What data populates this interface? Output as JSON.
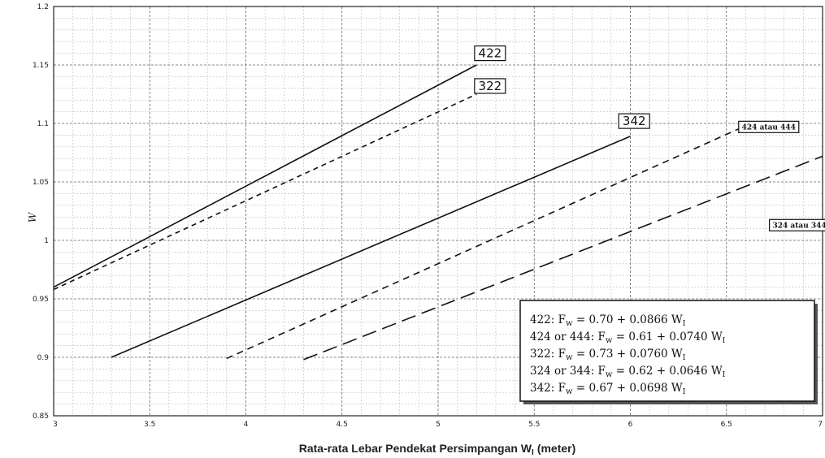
{
  "chart_data": {
    "type": "line",
    "title": "",
    "xlabel": "Rata-rata Lebar Pendekat Persimpangan W",
    "xlabel_subscript": "I",
    "xlabel_unit": "(meter)",
    "ylabel": "W",
    "xlim": [
      3,
      7
    ],
    "ylim": [
      0.85,
      1.2
    ],
    "x_ticks": [
      "3",
      "3.5",
      "4",
      "4.5",
      "5",
      "5.5",
      "6",
      "6.5",
      "7"
    ],
    "y_ticks": [
      "0.85",
      "0.9",
      "0.95",
      "1",
      "1.05",
      "1.1",
      "1.15",
      "1.2"
    ],
    "grid": true,
    "series": [
      {
        "name": "422",
        "style": "solid",
        "x": [
          3,
          5.2
        ],
        "y": [
          0.96,
          1.15
        ]
      },
      {
        "name": "322",
        "style": "dotted",
        "x": [
          3,
          5.2
        ],
        "y": [
          0.958,
          1.125
        ]
      },
      {
        "name": "342",
        "style": "solid",
        "x": [
          3.3,
          6
        ],
        "y": [
          0.9,
          1.089
        ]
      },
      {
        "name": "424 atau 444",
        "style": "dashed",
        "x": [
          3.9,
          6.6
        ],
        "y": [
          0.899,
          1.098
        ]
      },
      {
        "name": "324 atau 344",
        "style": "longdash",
        "x": [
          4.3,
          7
        ],
        "y": [
          0.898,
          1.072
        ]
      }
    ],
    "legend_position": "bottom-right",
    "legend": [
      {
        "code": "422:",
        "coef_a": "0.70",
        "coef_b": "0.0866"
      },
      {
        "code": "424 or 444:",
        "coef_a": "0.61",
        "coef_b": "0.0740"
      },
      {
        "code": "322:",
        "coef_a": "0.73",
        "coef_b": "0.0760"
      },
      {
        "code": "324 or 344:",
        "coef_a": "0.62",
        "coef_b": "0.0646"
      },
      {
        "code": "342:",
        "coef_a": "0.67",
        "coef_b": "0.0698"
      }
    ],
    "legend_symbol": "F",
    "legend_symbol_sub": "w",
    "legend_var": "W",
    "legend_var_sub": "I"
  }
}
